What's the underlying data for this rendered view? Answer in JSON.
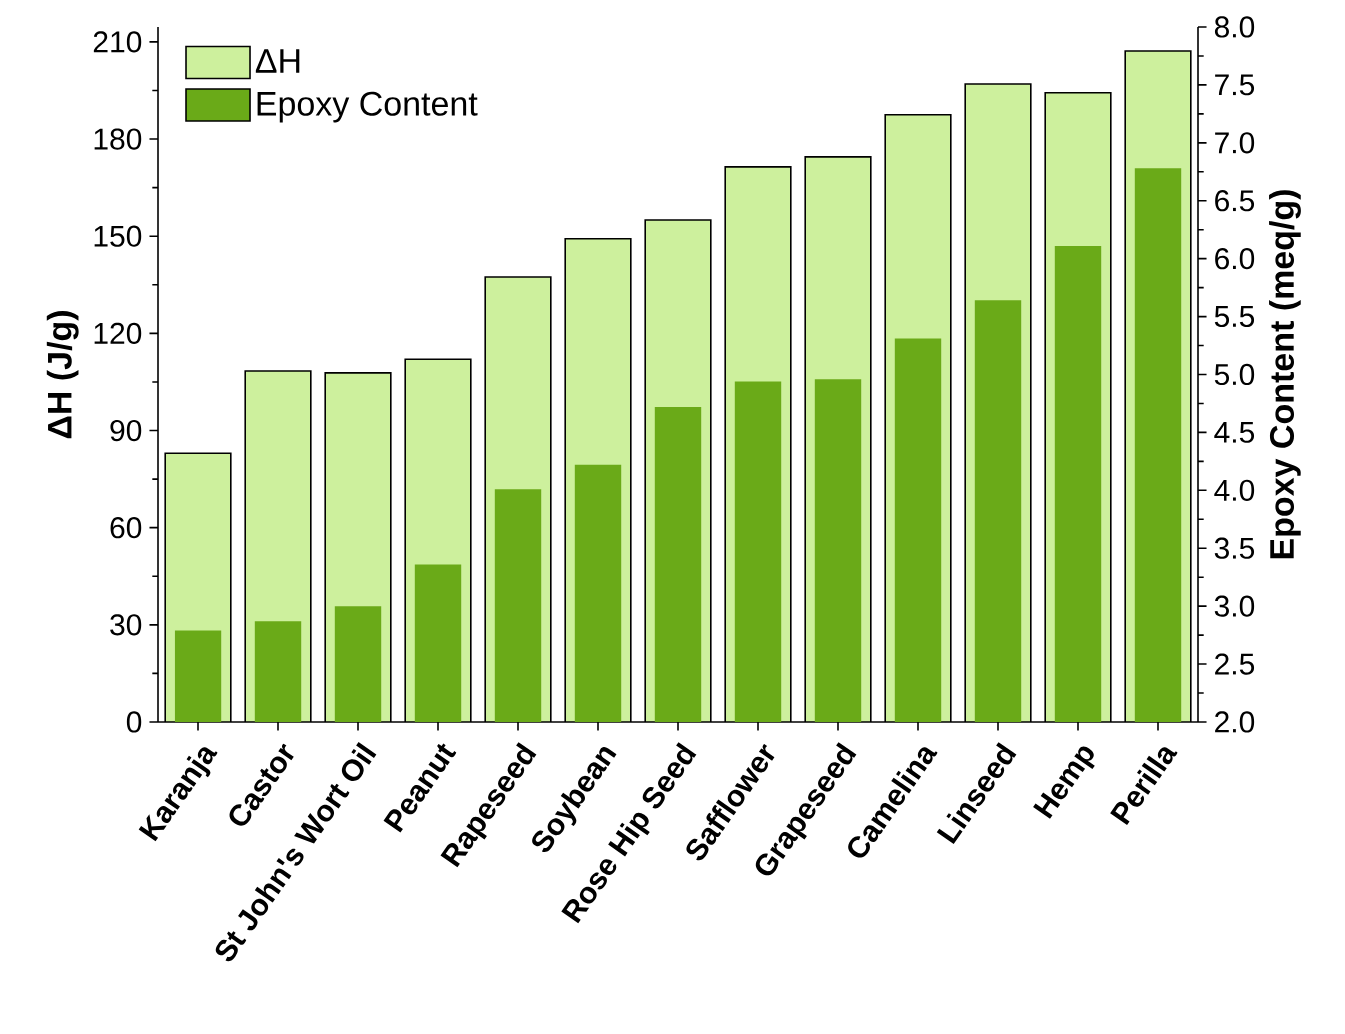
{
  "chart_data": {
    "type": "bar",
    "ylabel": "ΔH (J/g)",
    "y2label": "Epoxy Content (meq/g)",
    "categories": [
      "Karanja",
      "Castor",
      "St John's Wort Oil",
      "Peanut",
      "Rapeseed",
      "Soybean",
      "Rose Hip Seed",
      "Safflower",
      "Grapeseed",
      "Camelina",
      "Linseed",
      "Hemp",
      "Perilla"
    ],
    "series": [
      {
        "name": "ΔH",
        "color": "#cdf09d",
        "values": [
          83,
          108.4,
          107.8,
          112,
          137.4,
          149.2,
          155,
          171.4,
          174.5,
          187.5,
          197,
          194.3,
          207.2
        ]
      },
      {
        "name": "Epoxy Content",
        "color": "#6aaa18",
        "axis": "y2",
        "values": [
          2.79,
          2.87,
          3.0,
          3.36,
          4.01,
          4.22,
          4.72,
          4.94,
          4.96,
          5.31,
          5.64,
          6.11,
          6.78
        ]
      }
    ],
    "ylim": [
      0,
      214.6
    ],
    "yticks": [
      0,
      30,
      60,
      90,
      120,
      150,
      180,
      210
    ],
    "y2lim": [
      2,
      8
    ],
    "y2ticks": [
      {
        "value": 2,
        "label": "2.0"
      },
      {
        "value": 2.5,
        "label": "2.5"
      },
      {
        "value": 3,
        "label": "3.0"
      },
      {
        "value": 3.5,
        "label": "3.5"
      },
      {
        "value": 4,
        "label": "4.0"
      },
      {
        "value": 4.5,
        "label": "4.5"
      },
      {
        "value": 5,
        "label": "5.0"
      },
      {
        "value": 5.5,
        "label": "5.5"
      },
      {
        "value": 6,
        "label": "6.0"
      },
      {
        "value": 6.5,
        "label": "6.5"
      },
      {
        "value": 7,
        "label": "7.0"
      },
      {
        "value": 7.5,
        "label": "7.5"
      },
      {
        "value": 8,
        "label": "8.0"
      }
    ],
    "legend": "top left",
    "grid": false
  }
}
